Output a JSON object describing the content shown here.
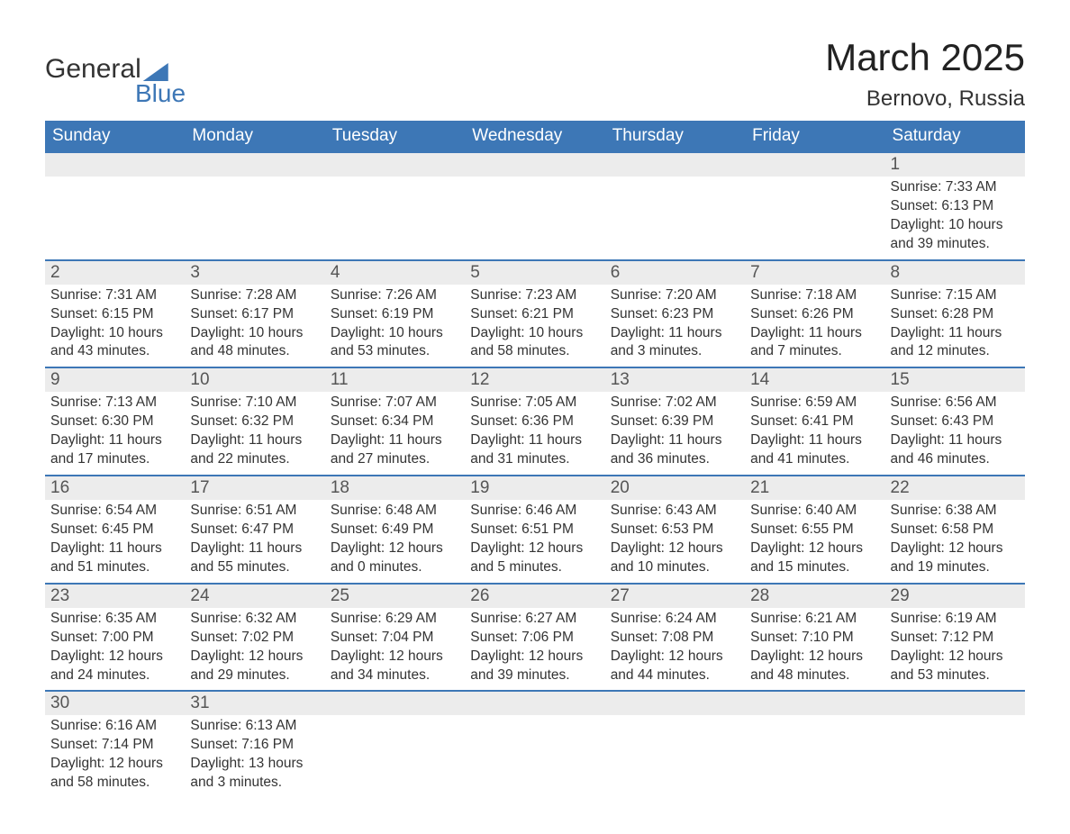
{
  "logo": {
    "text1": "General",
    "text2": "Blue"
  },
  "title": "March 2025",
  "location": "Bernovo, Russia",
  "colors": {
    "header_bg": "#3d77b6",
    "header_text": "#ffffff",
    "daynum_bg": "#ececec",
    "row_border": "#3d77b6",
    "body_bg": "#ffffff",
    "text": "#333333"
  },
  "days_of_week": [
    "Sunday",
    "Monday",
    "Tuesday",
    "Wednesday",
    "Thursday",
    "Friday",
    "Saturday"
  ],
  "weeks": [
    [
      {
        "n": "",
        "sunrise": "",
        "sunset": "",
        "daylight": ""
      },
      {
        "n": "",
        "sunrise": "",
        "sunset": "",
        "daylight": ""
      },
      {
        "n": "",
        "sunrise": "",
        "sunset": "",
        "daylight": ""
      },
      {
        "n": "",
        "sunrise": "",
        "sunset": "",
        "daylight": ""
      },
      {
        "n": "",
        "sunrise": "",
        "sunset": "",
        "daylight": ""
      },
      {
        "n": "",
        "sunrise": "",
        "sunset": "",
        "daylight": ""
      },
      {
        "n": "1",
        "sunrise": "Sunrise: 7:33 AM",
        "sunset": "Sunset: 6:13 PM",
        "daylight": "Daylight: 10 hours and 39 minutes."
      }
    ],
    [
      {
        "n": "2",
        "sunrise": "Sunrise: 7:31 AM",
        "sunset": "Sunset: 6:15 PM",
        "daylight": "Daylight: 10 hours and 43 minutes."
      },
      {
        "n": "3",
        "sunrise": "Sunrise: 7:28 AM",
        "sunset": "Sunset: 6:17 PM",
        "daylight": "Daylight: 10 hours and 48 minutes."
      },
      {
        "n": "4",
        "sunrise": "Sunrise: 7:26 AM",
        "sunset": "Sunset: 6:19 PM",
        "daylight": "Daylight: 10 hours and 53 minutes."
      },
      {
        "n": "5",
        "sunrise": "Sunrise: 7:23 AM",
        "sunset": "Sunset: 6:21 PM",
        "daylight": "Daylight: 10 hours and 58 minutes."
      },
      {
        "n": "6",
        "sunrise": "Sunrise: 7:20 AM",
        "sunset": "Sunset: 6:23 PM",
        "daylight": "Daylight: 11 hours and 3 minutes."
      },
      {
        "n": "7",
        "sunrise": "Sunrise: 7:18 AM",
        "sunset": "Sunset: 6:26 PM",
        "daylight": "Daylight: 11 hours and 7 minutes."
      },
      {
        "n": "8",
        "sunrise": "Sunrise: 7:15 AM",
        "sunset": "Sunset: 6:28 PM",
        "daylight": "Daylight: 11 hours and 12 minutes."
      }
    ],
    [
      {
        "n": "9",
        "sunrise": "Sunrise: 7:13 AM",
        "sunset": "Sunset: 6:30 PM",
        "daylight": "Daylight: 11 hours and 17 minutes."
      },
      {
        "n": "10",
        "sunrise": "Sunrise: 7:10 AM",
        "sunset": "Sunset: 6:32 PM",
        "daylight": "Daylight: 11 hours and 22 minutes."
      },
      {
        "n": "11",
        "sunrise": "Sunrise: 7:07 AM",
        "sunset": "Sunset: 6:34 PM",
        "daylight": "Daylight: 11 hours and 27 minutes."
      },
      {
        "n": "12",
        "sunrise": "Sunrise: 7:05 AM",
        "sunset": "Sunset: 6:36 PM",
        "daylight": "Daylight: 11 hours and 31 minutes."
      },
      {
        "n": "13",
        "sunrise": "Sunrise: 7:02 AM",
        "sunset": "Sunset: 6:39 PM",
        "daylight": "Daylight: 11 hours and 36 minutes."
      },
      {
        "n": "14",
        "sunrise": "Sunrise: 6:59 AM",
        "sunset": "Sunset: 6:41 PM",
        "daylight": "Daylight: 11 hours and 41 minutes."
      },
      {
        "n": "15",
        "sunrise": "Sunrise: 6:56 AM",
        "sunset": "Sunset: 6:43 PM",
        "daylight": "Daylight: 11 hours and 46 minutes."
      }
    ],
    [
      {
        "n": "16",
        "sunrise": "Sunrise: 6:54 AM",
        "sunset": "Sunset: 6:45 PM",
        "daylight": "Daylight: 11 hours and 51 minutes."
      },
      {
        "n": "17",
        "sunrise": "Sunrise: 6:51 AM",
        "sunset": "Sunset: 6:47 PM",
        "daylight": "Daylight: 11 hours and 55 minutes."
      },
      {
        "n": "18",
        "sunrise": "Sunrise: 6:48 AM",
        "sunset": "Sunset: 6:49 PM",
        "daylight": "Daylight: 12 hours and 0 minutes."
      },
      {
        "n": "19",
        "sunrise": "Sunrise: 6:46 AM",
        "sunset": "Sunset: 6:51 PM",
        "daylight": "Daylight: 12 hours and 5 minutes."
      },
      {
        "n": "20",
        "sunrise": "Sunrise: 6:43 AM",
        "sunset": "Sunset: 6:53 PM",
        "daylight": "Daylight: 12 hours and 10 minutes."
      },
      {
        "n": "21",
        "sunrise": "Sunrise: 6:40 AM",
        "sunset": "Sunset: 6:55 PM",
        "daylight": "Daylight: 12 hours and 15 minutes."
      },
      {
        "n": "22",
        "sunrise": "Sunrise: 6:38 AM",
        "sunset": "Sunset: 6:58 PM",
        "daylight": "Daylight: 12 hours and 19 minutes."
      }
    ],
    [
      {
        "n": "23",
        "sunrise": "Sunrise: 6:35 AM",
        "sunset": "Sunset: 7:00 PM",
        "daylight": "Daylight: 12 hours and 24 minutes."
      },
      {
        "n": "24",
        "sunrise": "Sunrise: 6:32 AM",
        "sunset": "Sunset: 7:02 PM",
        "daylight": "Daylight: 12 hours and 29 minutes."
      },
      {
        "n": "25",
        "sunrise": "Sunrise: 6:29 AM",
        "sunset": "Sunset: 7:04 PM",
        "daylight": "Daylight: 12 hours and 34 minutes."
      },
      {
        "n": "26",
        "sunrise": "Sunrise: 6:27 AM",
        "sunset": "Sunset: 7:06 PM",
        "daylight": "Daylight: 12 hours and 39 minutes."
      },
      {
        "n": "27",
        "sunrise": "Sunrise: 6:24 AM",
        "sunset": "Sunset: 7:08 PM",
        "daylight": "Daylight: 12 hours and 44 minutes."
      },
      {
        "n": "28",
        "sunrise": "Sunrise: 6:21 AM",
        "sunset": "Sunset: 7:10 PM",
        "daylight": "Daylight: 12 hours and 48 minutes."
      },
      {
        "n": "29",
        "sunrise": "Sunrise: 6:19 AM",
        "sunset": "Sunset: 7:12 PM",
        "daylight": "Daylight: 12 hours and 53 minutes."
      }
    ],
    [
      {
        "n": "30",
        "sunrise": "Sunrise: 6:16 AM",
        "sunset": "Sunset: 7:14 PM",
        "daylight": "Daylight: 12 hours and 58 minutes."
      },
      {
        "n": "31",
        "sunrise": "Sunrise: 6:13 AM",
        "sunset": "Sunset: 7:16 PM",
        "daylight": "Daylight: 13 hours and 3 minutes."
      },
      {
        "n": "",
        "sunrise": "",
        "sunset": "",
        "daylight": ""
      },
      {
        "n": "",
        "sunrise": "",
        "sunset": "",
        "daylight": ""
      },
      {
        "n": "",
        "sunrise": "",
        "sunset": "",
        "daylight": ""
      },
      {
        "n": "",
        "sunrise": "",
        "sunset": "",
        "daylight": ""
      },
      {
        "n": "",
        "sunrise": "",
        "sunset": "",
        "daylight": ""
      }
    ]
  ]
}
